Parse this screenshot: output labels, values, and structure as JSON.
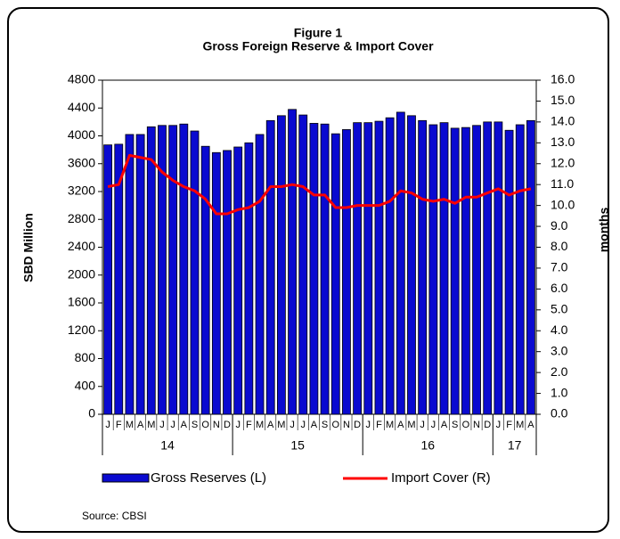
{
  "chart_data": {
    "type": "bar-line",
    "title": "Figure 1",
    "subtitle": "Gross Foreign Reserve & Import Cover",
    "y_label": "SBD Million",
    "y2_label": "months",
    "source": "Source: CBSI",
    "groups": [
      {
        "label": "14",
        "categories": [
          "J",
          "F",
          "M",
          "A",
          "M",
          "J",
          "J",
          "A",
          "S",
          "O",
          "N",
          "D"
        ]
      },
      {
        "label": "15",
        "categories": [
          "J",
          "F",
          "M",
          "A",
          "M",
          "J",
          "J",
          "A",
          "S",
          "O",
          "N",
          "D"
        ]
      },
      {
        "label": "16",
        "categories": [
          "J",
          "F",
          "M",
          "A",
          "M",
          "J",
          "J",
          "A",
          "S",
          "O",
          "N",
          "D"
        ]
      },
      {
        "label": "17",
        "categories": [
          "J",
          "F",
          "M",
          "A"
        ]
      }
    ],
    "series": [
      {
        "name": "Gross Reserves (L)",
        "color": "#0a0ad0",
        "type": "bar",
        "values": [
          3870,
          3880,
          4020,
          4020,
          4130,
          4150,
          4150,
          4170,
          4070,
          3850,
          3760,
          3790,
          3840,
          3900,
          4020,
          4220,
          4290,
          4380,
          4300,
          4180,
          4170,
          4030,
          4090,
          4190,
          4190,
          4210,
          4260,
          4340,
          4290,
          4220,
          4160,
          4190,
          4110,
          4120,
          4150,
          4200,
          4200,
          4080,
          4160,
          4220
        ]
      },
      {
        "name": "Import Cover (R)",
        "color": "#ff0000",
        "type": "line",
        "axis": "y2",
        "values": [
          10.9,
          11.0,
          12.4,
          12.3,
          12.2,
          11.6,
          11.2,
          10.9,
          10.7,
          10.3,
          9.6,
          9.6,
          9.8,
          9.9,
          10.2,
          10.9,
          10.9,
          11.0,
          10.9,
          10.5,
          10.5,
          9.9,
          9.9,
          10.0,
          10.0,
          10.0,
          10.2,
          10.7,
          10.6,
          10.3,
          10.2,
          10.3,
          10.1,
          10.4,
          10.4,
          10.6,
          10.8,
          10.5,
          10.7,
          10.8
        ]
      }
    ],
    "ylim": [
      0,
      4800
    ],
    "yticks": [
      0,
      400,
      800,
      1200,
      1600,
      2000,
      2400,
      2800,
      3200,
      3600,
      4000,
      4400,
      4800
    ],
    "y2lim": [
      0,
      16
    ],
    "y2ticks": [
      {
        "value": 0,
        "label": "0.0"
      },
      {
        "value": 1,
        "label": "1.0"
      },
      {
        "value": 2,
        "label": "2.0"
      },
      {
        "value": 3,
        "label": "3.0"
      },
      {
        "value": 4,
        "label": "4.0"
      },
      {
        "value": 5,
        "label": "5.0"
      },
      {
        "value": 6,
        "label": "6.0"
      },
      {
        "value": 7,
        "label": "7.0"
      },
      {
        "value": 8,
        "label": "8.0"
      },
      {
        "value": 9,
        "label": "9.0"
      },
      {
        "value": 10,
        "label": "10.0"
      },
      {
        "value": 11,
        "label": "11.0"
      },
      {
        "value": 12,
        "label": "12.0"
      },
      {
        "value": 13,
        "label": "13.0"
      },
      {
        "value": 14,
        "label": "14.0"
      },
      {
        "value": 15,
        "label": "15.0"
      },
      {
        "value": 16,
        "label": "16.0"
      }
    ]
  }
}
